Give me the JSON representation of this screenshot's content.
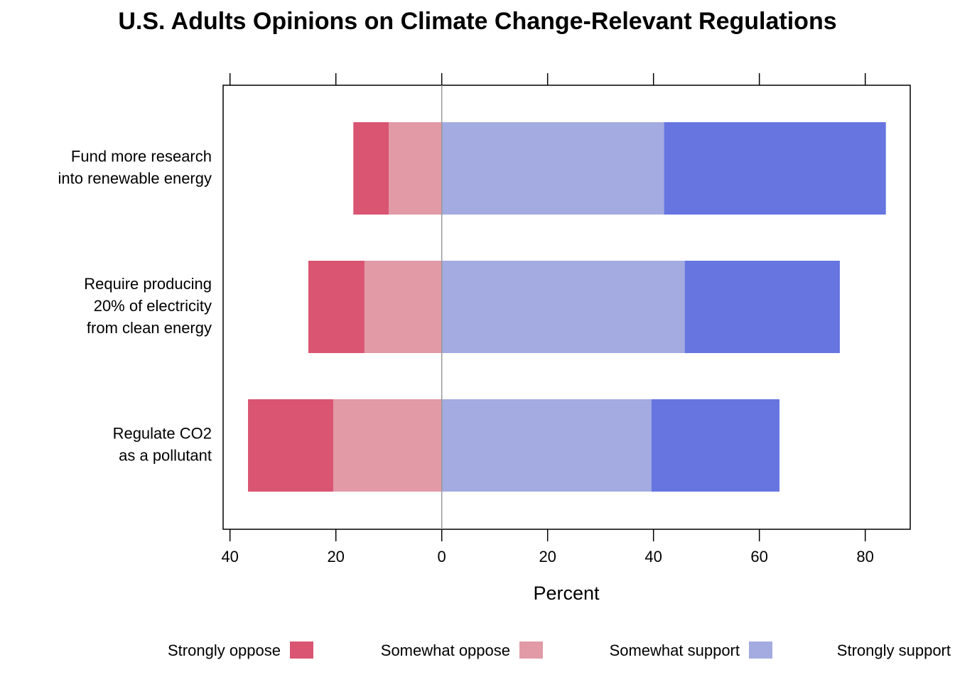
{
  "chart_data": {
    "type": "diverging-bar",
    "title": "U.S. Adults Opinions on Climate Change-Relevant Regulations",
    "x_label": "Percent",
    "categories": [
      "Fund more research\ninto renewable energy",
      "Require producing\n20% of electricity\nfrom clean energy",
      "Regulate CO2\nas a pollutant"
    ],
    "series": [
      {
        "name": "Strongly oppose",
        "color": "#d95572",
        "values": [
          -6.7,
          -10.6,
          -16.1
        ]
      },
      {
        "name": "Somewhat oppose",
        "color": "#e19aa6",
        "values": [
          -10,
          -14.6,
          -20.5
        ]
      },
      {
        "name": "Somewhat support",
        "color": "#a3abe0",
        "values": [
          42,
          45.9,
          39.6
        ]
      },
      {
        "name": "Strongly support",
        "color": "#6675e0",
        "values": [
          41.9,
          29.3,
          24.2
        ]
      }
    ],
    "xlim": [
      -41.3,
      88.5
    ],
    "xticks": [
      {
        "value": -40,
        "label": "40"
      },
      {
        "value": -20,
        "label": "20"
      },
      0,
      20,
      40,
      60,
      80
    ],
    "legend": "bottom"
  }
}
